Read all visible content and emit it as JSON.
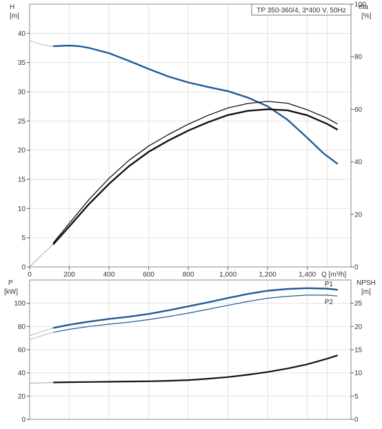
{
  "chart_data": [
    {
      "type": "line",
      "title": "TP 350-360/4, 3*400 V, 50Hz",
      "xlabel": "Q [m³/h]",
      "xlim": [
        0,
        1620
      ],
      "x_ticks": [
        {
          "value": 0,
          "label": "0"
        },
        {
          "value": 200,
          "label": "200"
        },
        {
          "value": 400,
          "label": "400"
        },
        {
          "value": 600,
          "label": "600"
        },
        {
          "value": 800,
          "label": "800"
        },
        {
          "value": 1000,
          "label": "1,000"
        },
        {
          "value": 1200,
          "label": "1,200"
        },
        {
          "value": 1400,
          "label": "1,400"
        }
      ],
      "left_axis": {
        "label_top": "H",
        "label_unit": "[m]",
        "ylim": [
          0,
          45
        ],
        "ticks": [
          0,
          5,
          10,
          15,
          20,
          25,
          30,
          35,
          40
        ]
      },
      "right_axis": {
        "label_top": "eta",
        "label_unit": "[%]",
        "ylim": [
          0,
          100
        ],
        "ticks": [
          0,
          20,
          40,
          60,
          80,
          100
        ]
      },
      "series": [
        {
          "axis": "left",
          "color": "#1f5a96",
          "width": 2.4,
          "points": [
            [
              120,
              37.8
            ],
            [
              200,
              37.9
            ],
            [
              250,
              37.8
            ],
            [
              300,
              37.5
            ],
            [
              400,
              36.6
            ],
            [
              500,
              35.3
            ],
            [
              600,
              33.9
            ],
            [
              700,
              32.6
            ],
            [
              800,
              31.6
            ],
            [
              900,
              30.8
            ],
            [
              1000,
              30.1
            ],
            [
              1100,
              29.0
            ],
            [
              1200,
              27.5
            ],
            [
              1300,
              25.2
            ],
            [
              1400,
              22.1
            ],
            [
              1480,
              19.5
            ],
            [
              1550,
              17.7
            ]
          ]
        },
        {
          "axis": "left",
          "color": "#a0b4c8",
          "width": 0.9,
          "points": [
            [
              0,
              38.8
            ],
            [
              40,
              38.3
            ],
            [
              80,
              37.9
            ],
            [
              120,
              37.8
            ]
          ]
        },
        {
          "axis": "right",
          "color": "#111111",
          "width": 1.3,
          "points": [
            [
              120,
              9.2
            ],
            [
              200,
              16.6
            ],
            [
              300,
              25.7
            ],
            [
              400,
              33.7
            ],
            [
              500,
              40.5
            ],
            [
              600,
              46.0
            ],
            [
              700,
              50.4
            ],
            [
              800,
              54.3
            ],
            [
              900,
              57.7
            ],
            [
              1000,
              60.5
            ],
            [
              1100,
              62.2
            ],
            [
              1200,
              63.0
            ],
            [
              1300,
              62.3
            ],
            [
              1400,
              59.8
            ],
            [
              1500,
              56.6
            ],
            [
              1550,
              54.5
            ]
          ]
        },
        {
          "axis": "right",
          "color": "#111111",
          "width": 2.4,
          "points": [
            [
              120,
              8.7
            ],
            [
              200,
              15.4
            ],
            [
              300,
              24.0
            ],
            [
              400,
              31.6
            ],
            [
              500,
              38.3
            ],
            [
              600,
              43.8
            ],
            [
              700,
              48.1
            ],
            [
              800,
              51.9
            ],
            [
              900,
              55.1
            ],
            [
              1000,
              57.8
            ],
            [
              1100,
              59.4
            ],
            [
              1200,
              60.0
            ],
            [
              1300,
              59.6
            ],
            [
              1400,
              57.7
            ],
            [
              1500,
              54.4
            ],
            [
              1550,
              52.3
            ]
          ]
        },
        {
          "axis": "right",
          "color": "#a0a0a0",
          "width": 0.9,
          "points": [
            [
              0,
              0
            ],
            [
              60,
              4.5
            ],
            [
              120,
              8.7
            ]
          ]
        }
      ]
    },
    {
      "type": "line",
      "xlim": [
        0,
        1620
      ],
      "left_axis": {
        "label_top": "P",
        "label_unit": "[kW]",
        "ylim": [
          0,
          120
        ],
        "ticks": [
          0,
          20,
          40,
          60,
          80,
          100
        ]
      },
      "right_axis": {
        "label_top": "NPSH",
        "label_unit": "[m]",
        "ylim": [
          0,
          30
        ],
        "ticks": [
          0,
          5,
          10,
          15,
          20,
          25
        ]
      },
      "series": [
        {
          "name": "P1",
          "axis": "left",
          "color": "#1f5a96",
          "width": 2.4,
          "points": [
            [
              120,
              78.8
            ],
            [
              200,
              81.5
            ],
            [
              300,
              84.2
            ],
            [
              400,
              86.5
            ],
            [
              500,
              88.4
            ],
            [
              600,
              90.8
            ],
            [
              700,
              93.9
            ],
            [
              800,
              97.3
            ],
            [
              900,
              100.8
            ],
            [
              1000,
              104.5
            ],
            [
              1100,
              108.0
            ],
            [
              1200,
              110.8
            ],
            [
              1300,
              112.3
            ],
            [
              1400,
              113.0
            ],
            [
              1500,
              112.6
            ],
            [
              1550,
              111.6
            ]
          ]
        },
        {
          "name": "P2",
          "axis": "left",
          "color": "#1f5a96",
          "width": 1.2,
          "points": [
            [
              120,
              75.0
            ],
            [
              200,
              77.5
            ],
            [
              300,
              80.0
            ],
            [
              400,
              82.0
            ],
            [
              500,
              83.7
            ],
            [
              600,
              85.9
            ],
            [
              700,
              88.5
            ],
            [
              800,
              91.5
            ],
            [
              900,
              94.8
            ],
            [
              1000,
              98.2
            ],
            [
              1100,
              101.5
            ],
            [
              1200,
              104.3
            ],
            [
              1300,
              106.0
            ],
            [
              1400,
              107.0
            ],
            [
              1500,
              107.0
            ],
            [
              1550,
              106.2
            ]
          ]
        },
        {
          "axis": "left",
          "color": "#a0b4c8",
          "width": 0.9,
          "points": [
            [
              0,
              72.0
            ],
            [
              60,
              75.6
            ],
            [
              120,
              78.8
            ]
          ]
        },
        {
          "axis": "left",
          "color": "#a0b4c8",
          "width": 0.9,
          "points": [
            [
              0,
              68.5
            ],
            [
              60,
              72.0
            ],
            [
              120,
              75.0
            ]
          ]
        },
        {
          "axis": "right",
          "color": "#111111",
          "width": 2.2,
          "points": [
            [
              120,
              7.95
            ],
            [
              200,
              8.0
            ],
            [
              300,
              8.05
            ],
            [
              400,
              8.1
            ],
            [
              500,
              8.15
            ],
            [
              600,
              8.2
            ],
            [
              700,
              8.3
            ],
            [
              800,
              8.45
            ],
            [
              900,
              8.75
            ],
            [
              1000,
              9.1
            ],
            [
              1100,
              9.6
            ],
            [
              1200,
              10.2
            ],
            [
              1300,
              10.95
            ],
            [
              1400,
              11.85
            ],
            [
              1500,
              13.05
            ],
            [
              1550,
              13.75
            ]
          ]
        },
        {
          "axis": "right",
          "color": "#a0a0a0",
          "width": 0.9,
          "points": [
            [
              0,
              7.8
            ],
            [
              60,
              7.85
            ],
            [
              120,
              7.95
            ]
          ]
        }
      ]
    }
  ]
}
